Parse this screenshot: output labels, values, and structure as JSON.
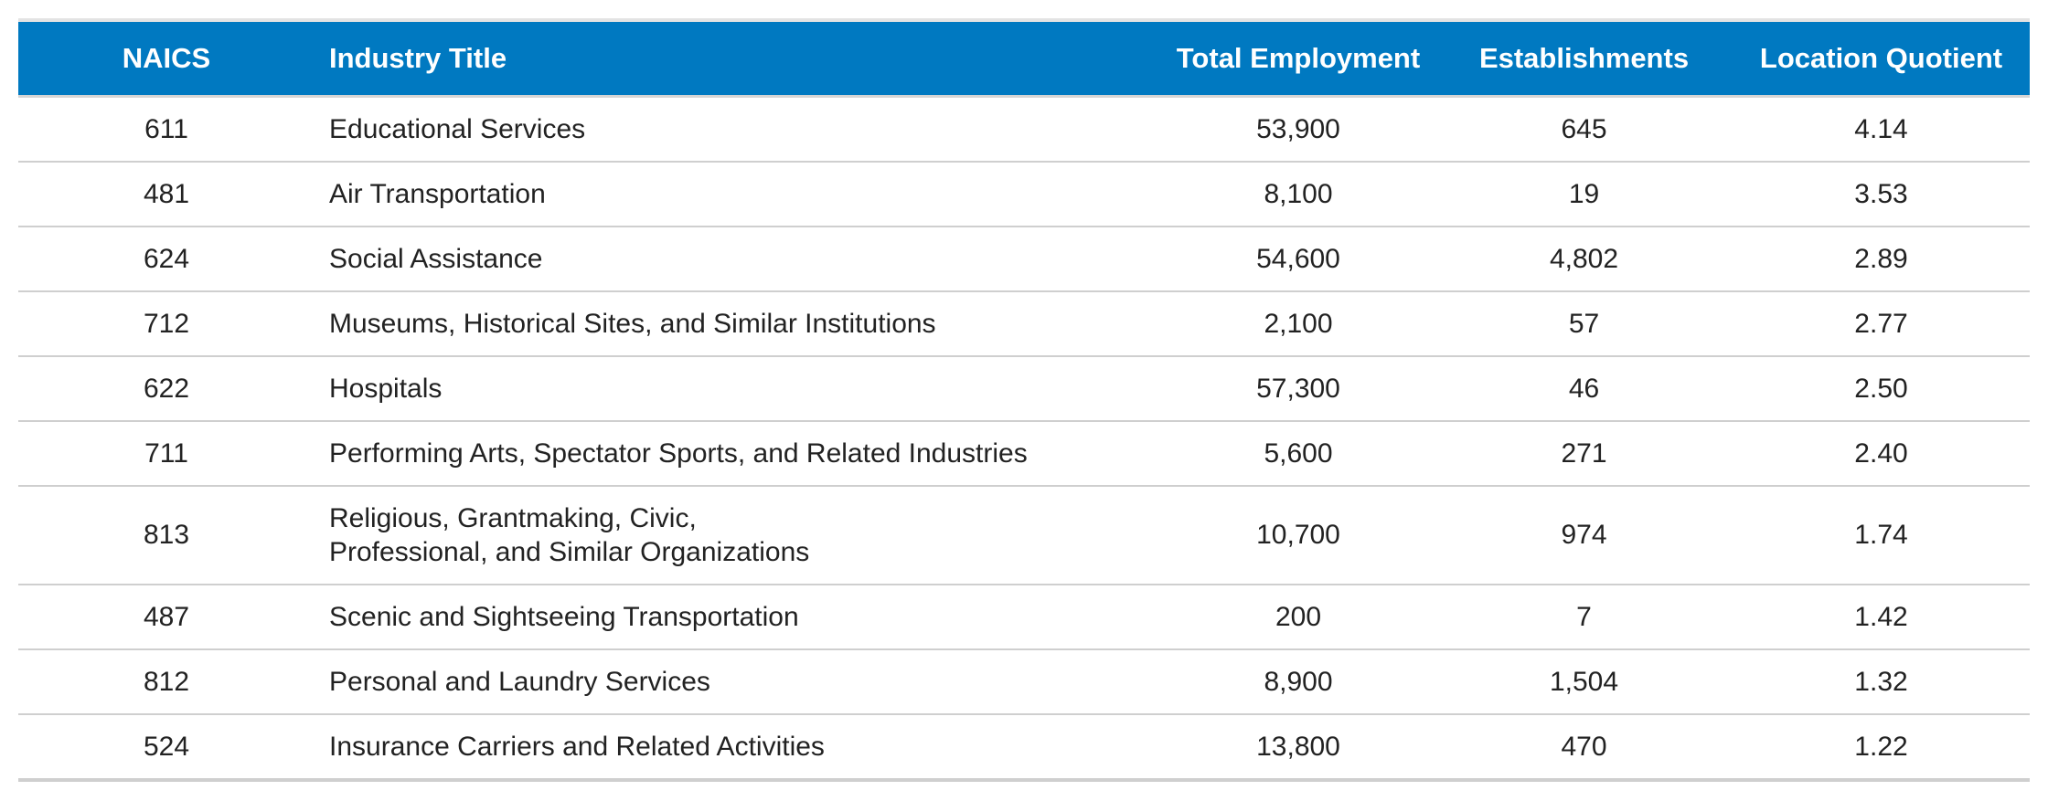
{
  "table": {
    "headers": {
      "naics": "NAICS",
      "title": "Industry Title",
      "employment": "Total Employment",
      "establishments": "Establishments",
      "lq": "Location Quotient"
    },
    "rows": [
      {
        "naics": "611",
        "title": "Educational Services",
        "employment": "53,900",
        "establishments": "645",
        "lq": "4.14"
      },
      {
        "naics": "481",
        "title": "Air Transportation",
        "employment": "8,100",
        "establishments": "19",
        "lq": "3.53"
      },
      {
        "naics": "624",
        "title": "Social Assistance",
        "employment": "54,600",
        "establishments": "4,802",
        "lq": "2.89"
      },
      {
        "naics": "712",
        "title": "Museums, Historical Sites, and Similar Institutions",
        "employment": "2,100",
        "establishments": "57",
        "lq": "2.77"
      },
      {
        "naics": "622",
        "title": "Hospitals",
        "employment": "57,300",
        "establishments": "46",
        "lq": "2.50"
      },
      {
        "naics": "711",
        "title": "Performing Arts, Spectator Sports, and Related Industries",
        "employment": "5,600",
        "establishments": "271",
        "lq": "2.40"
      },
      {
        "naics": "813",
        "title": "Religious, Grantmaking, Civic, Professional, and Similar Organizations",
        "employment": "10,700",
        "establishments": "974",
        "lq": "1.74"
      },
      {
        "naics": "487",
        "title": "Scenic and Sightseeing Transportation",
        "employment": "200",
        "establishments": "7",
        "lq": "1.42"
      },
      {
        "naics": "812",
        "title": "Personal and Laundry Services",
        "employment": "8,900",
        "establishments": "1,504",
        "lq": "1.32"
      },
      {
        "naics": "524",
        "title": "Insurance Carriers and Related Activities",
        "employment": "13,800",
        "establishments": "470",
        "lq": "1.22"
      }
    ]
  },
  "colors": {
    "header_background": "#0079c1",
    "header_text": "#ffffff",
    "row_divider": "#cfcfcf",
    "body_text": "#222222"
  }
}
